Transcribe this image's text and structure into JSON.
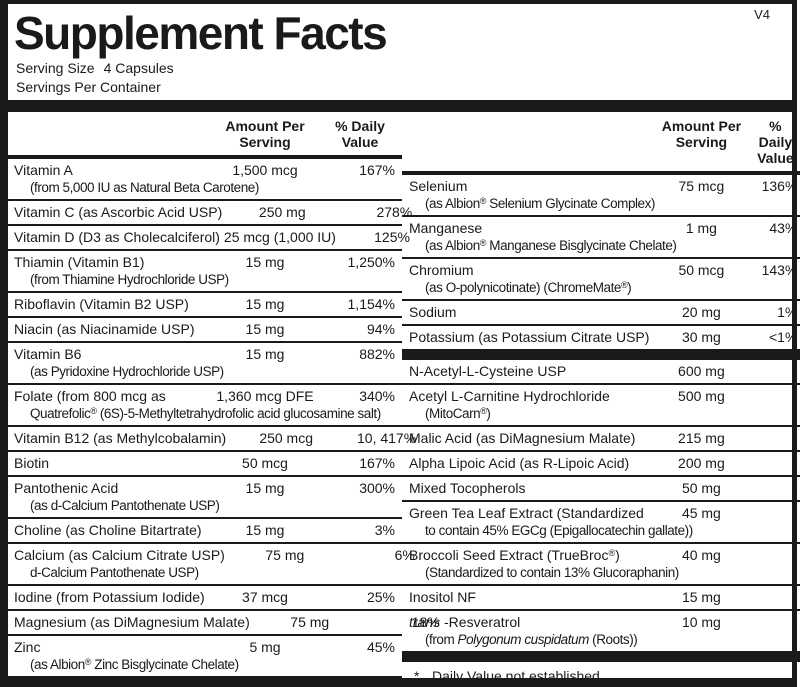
{
  "version": "V4",
  "title": "Supplement Facts",
  "serving": {
    "size_label": "Serving Size",
    "size_value": "4 Capsules",
    "per_container": "Servings Per Container"
  },
  "header": {
    "amount_line1": "Amount Per",
    "amount_line2": "Serving",
    "dv_line1": "% Daily",
    "dv_line2": "Value"
  },
  "left": {
    "rows": [
      {
        "name": "Vitamin A",
        "sub": "(from 5,000 IU as Natural Beta Carotene)",
        "amount": "1,500 mcg",
        "dv": "167%"
      },
      {
        "name": "Vitamin C (as Ascorbic Acid USP)",
        "amount": "250 mg",
        "dv": "278%"
      },
      {
        "name": "Vitamin D (D3 as Cholecalciferol)",
        "amount": "25 mcg (1,000 IU)",
        "dv": "125%"
      },
      {
        "name": "Thiamin (Vitamin B1)",
        "sub": "(from Thiamine Hydrochloride USP)",
        "amount": "15 mg",
        "dv": "1,250%"
      },
      {
        "name": "Riboflavin (Vitamin B2 USP)",
        "amount": "15 mg",
        "dv": "1,154%"
      },
      {
        "name": "Niacin (as Niacinamide USP)",
        "amount": "15 mg",
        "dv": "94%"
      },
      {
        "name": "Vitamin B6",
        "sub": "(as Pyridoxine Hydrochloride USP)",
        "amount": "15 mg",
        "dv": "882%"
      },
      {
        "name": "Folate (from 800 mcg as",
        "sub": "Quatrefolic® (6S)-5-Methyltetrahydrofolic acid glucosamine salt)",
        "amount": "1,360 mcg DFE",
        "dv": "340%"
      },
      {
        "name": "Vitamin B12 (as Methylcobalamin)",
        "amount": "250 mcg",
        "dv": "10, 417%"
      },
      {
        "name": "Biotin",
        "amount": "50 mcg",
        "dv": "167%"
      },
      {
        "name": "Pantothenic Acid",
        "sub": "(as d-Calcium Pantothenate USP)",
        "amount": "15 mg",
        "dv": "300%"
      },
      {
        "name": "Choline (as Choline Bitartrate)",
        "amount": "15 mg",
        "dv": "3%"
      },
      {
        "name": "Calcium (as Calcium Citrate USP)",
        "sub": "d-Calcium Pantothenate USP)",
        "amount": "75 mg",
        "dv": "6%"
      },
      {
        "name": "Iodine (from Potassium Iodide)",
        "amount": "37 mcg",
        "dv": "25%"
      },
      {
        "name": "Magnesium (as DiMagnesium Malate)",
        "amount": "75 mg",
        "dv": "18%"
      },
      {
        "name": "Zinc",
        "sub": "(as Albion® Zinc Bisglycinate Chelate)",
        "amount": "5 mg",
        "dv": "45%"
      }
    ]
  },
  "right": {
    "sections": [
      {
        "rows": [
          {
            "name": "Selenium",
            "sub": "(as Albion® Selenium Glycinate Complex)",
            "amount": "75 mcg",
            "dv": "136%"
          },
          {
            "name": "Manganese",
            "sub": "(as Albion® Manganese Bisglycinate Chelate)",
            "amount": "1 mg",
            "dv": "43%"
          },
          {
            "name": "Chromium",
            "sub": "(as O-polynicotinate) (ChromeMate®)",
            "amount": "50 mcg",
            "dv": "143%"
          },
          {
            "name": "Sodium",
            "amount": "20 mg",
            "dv": "1%"
          },
          {
            "name": "Potassium (as Potassium Citrate USP)",
            "amount": "30 mg",
            "dv": "<1%"
          }
        ]
      },
      {
        "rows": [
          {
            "name": "N-Acetyl-L-Cysteine USP",
            "amount": "600 mg",
            "dv": "*"
          },
          {
            "name": "Acetyl L-Carnitine Hydrochloride",
            "sub": "(MitoCarn®)",
            "amount": "500 mg",
            "dv": "*"
          },
          {
            "name": "Malic Acid (as DiMagnesium Malate)",
            "amount": "215 mg",
            "dv": "*"
          },
          {
            "name": "Alpha Lipoic Acid (as R-Lipoic Acid)",
            "amount": "200 mg",
            "dv": "*"
          },
          {
            "name": "Mixed Tocopherols",
            "amount": "50 mg",
            "dv": "*"
          },
          {
            "name": "Green Tea Leaf Extract (Standardized",
            "sub": "to contain 45% EGCg (Epigallocatechin gallate))",
            "amount": "45 mg",
            "dv": "*"
          },
          {
            "name": "Broccoli Seed Extract (TrueBroc®)",
            "sub": "(Standardized to contain 13% Glucoraphanin)",
            "amount": "40 mg",
            "dv": "*"
          },
          {
            "name": "Inositol NF",
            "amount": "15 mg",
            "dv": "*"
          },
          {
            "name_parts": [
              {
                "t": "trans",
                "i": true
              },
              {
                "t": " -Resveratrol"
              }
            ],
            "sub_parts": [
              {
                "t": "(from "
              },
              {
                "t": "Polygonum cuspidatum",
                "i": true
              },
              {
                "t": " (Roots))"
              }
            ],
            "amount": "10 mg",
            "dv": "*"
          }
        ]
      }
    ],
    "footnote_star": "*",
    "footnote": "Daily Value not established."
  },
  "colors": {
    "ink": "#1a1a1a",
    "paper": "#ffffff"
  }
}
